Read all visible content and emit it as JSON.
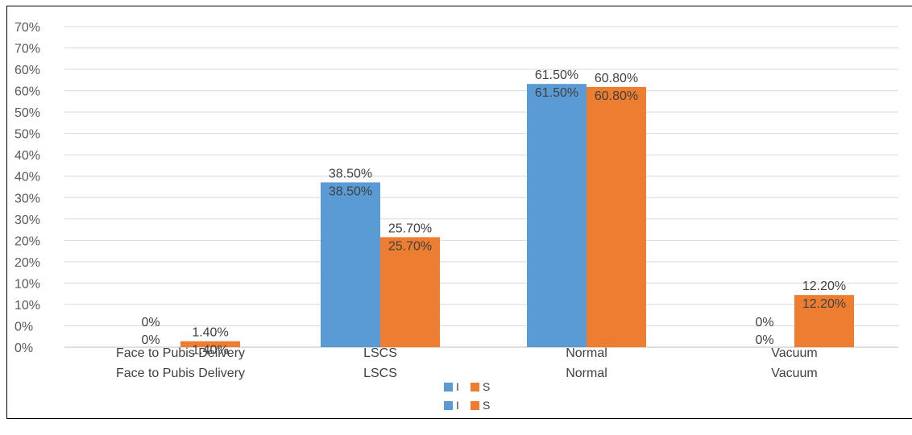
{
  "chart_data": {
    "type": "bar",
    "categories": [
      "Face to Pubis Delivery",
      "LSCS",
      "Normal",
      "Vacuum"
    ],
    "series": [
      {
        "name": "I",
        "values": [
          0,
          38.5,
          61.5,
          0
        ],
        "labels": [
          "0%",
          "38.50%",
          "61.50%",
          "0%"
        ],
        "color": "#5B9BD5"
      },
      {
        "name": "S",
        "values": [
          1.4,
          25.7,
          60.8,
          12.2
        ],
        "labels": [
          "1.40%",
          "25.70%",
          "60.80%",
          "12.20%"
        ],
        "color": "#ED7D31"
      }
    ],
    "y_tick_labels": [
      "0%",
      "0%",
      "10%",
      "10%",
      "20%",
      "20%",
      "30%",
      "30%",
      "40%",
      "40%",
      "50%",
      "50%",
      "60%",
      "60%",
      "70%",
      "70%"
    ],
    "ylim": [
      0,
      70
    ],
    "grid": true,
    "legend": "bottom-center",
    "doubled_text": true
  }
}
